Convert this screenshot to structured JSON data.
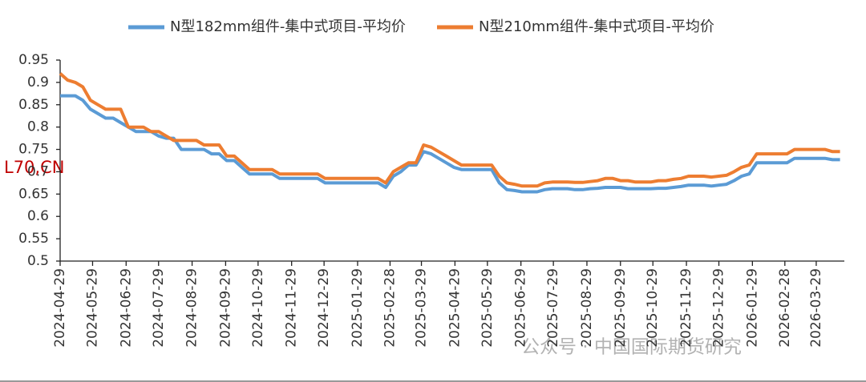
{
  "chart_data": {
    "type": "line",
    "x": [
      "2024-04-29",
      "2024-05-06",
      "2024-05-13",
      "2024-05-20",
      "2024-05-27",
      "2024-06-03",
      "2024-06-10",
      "2024-06-17",
      "2024-06-24",
      "2024-07-01",
      "2024-07-08",
      "2024-07-15",
      "2024-07-22",
      "2024-07-29",
      "2024-08-05",
      "2024-08-12",
      "2024-08-19",
      "2024-08-26",
      "2024-09-02",
      "2024-09-09",
      "2024-09-16",
      "2024-09-23",
      "2024-09-30",
      "2024-10-07",
      "2024-10-14",
      "2024-10-21",
      "2024-10-28",
      "2024-11-04",
      "2024-11-11",
      "2024-11-18",
      "2024-11-25",
      "2024-12-02",
      "2024-12-09",
      "2024-12-16",
      "2024-12-23",
      "2024-12-30",
      "2025-01-06",
      "2025-01-13",
      "2025-01-20",
      "2025-01-27",
      "2025-02-03",
      "2025-02-10",
      "2025-02-17",
      "2025-02-24",
      "2025-03-03",
      "2025-03-10",
      "2025-03-17",
      "2025-03-24",
      "2025-03-31",
      "2025-04-07",
      "2025-04-14",
      "2025-04-21",
      "2025-04-28",
      "2025-05-05",
      "2025-05-12",
      "2025-05-19",
      "2025-05-26",
      "2025-06-02",
      "2025-06-09",
      "2025-06-16",
      "2025-06-23",
      "2025-06-30",
      "2025-07-07",
      "2025-07-14",
      "2025-07-21",
      "2025-07-28",
      "2025-08-04",
      "2025-08-11",
      "2025-08-18",
      "2025-08-25",
      "2025-09-01",
      "2025-09-08",
      "2025-09-15",
      "2025-09-22",
      "2025-09-29",
      "2025-10-06",
      "2025-10-13",
      "2025-10-20",
      "2025-10-27",
      "2025-11-03",
      "2025-11-10",
      "2025-11-17",
      "2025-11-24",
      "2025-12-01",
      "2025-12-08",
      "2025-12-15",
      "2025-12-22",
      "2025-12-29",
      "2026-01-05",
      "2026-01-12",
      "2026-01-19",
      "2026-01-26",
      "2026-02-02",
      "2026-02-09",
      "2026-02-16",
      "2026-02-23",
      "2026-03-02",
      "2026-03-09",
      "2026-03-16",
      "2026-03-23",
      "2026-03-30",
      "2026-04-06",
      "2026-04-13",
      "2026-04-20"
    ],
    "series": [
      {
        "name": "N型182mm组件-集中式项目-平均价",
        "color": "#5b9bd5",
        "values": [
          0.87,
          0.87,
          0.87,
          0.86,
          0.84,
          0.83,
          0.82,
          0.82,
          0.81,
          0.8,
          0.79,
          0.79,
          0.79,
          0.78,
          0.775,
          0.775,
          0.75,
          0.75,
          0.75,
          0.75,
          0.74,
          0.74,
          0.725,
          0.725,
          0.71,
          0.695,
          0.695,
          0.695,
          0.695,
          0.685,
          0.685,
          0.685,
          0.685,
          0.685,
          0.685,
          0.675,
          0.675,
          0.675,
          0.675,
          0.675,
          0.675,
          0.675,
          0.675,
          0.665,
          0.69,
          0.7,
          0.715,
          0.715,
          0.745,
          0.74,
          0.73,
          0.72,
          0.71,
          0.705,
          0.705,
          0.705,
          0.705,
          0.705,
          0.675,
          0.66,
          0.658,
          0.655,
          0.655,
          0.655,
          0.66,
          0.662,
          0.662,
          0.662,
          0.66,
          0.66,
          0.662,
          0.663,
          0.665,
          0.665,
          0.665,
          0.662,
          0.662,
          0.662,
          0.662,
          0.663,
          0.663,
          0.665,
          0.667,
          0.67,
          0.67,
          0.67,
          0.668,
          0.67,
          0.672,
          0.68,
          0.69,
          0.695,
          0.72,
          0.72,
          0.72,
          0.72,
          0.72,
          0.73,
          0.73,
          0.73,
          0.73,
          0.73,
          0.727,
          0.727
        ]
      },
      {
        "name": "N型210mm组件-集中式项目-平均价",
        "color": "#ed7d31",
        "values": [
          0.92,
          0.905,
          0.9,
          0.89,
          0.86,
          0.85,
          0.84,
          0.84,
          0.84,
          0.8,
          0.8,
          0.8,
          0.79,
          0.79,
          0.78,
          0.77,
          0.77,
          0.77,
          0.77,
          0.76,
          0.76,
          0.76,
          0.735,
          0.735,
          0.72,
          0.705,
          0.705,
          0.705,
          0.705,
          0.695,
          0.695,
          0.695,
          0.695,
          0.695,
          0.695,
          0.685,
          0.685,
          0.685,
          0.685,
          0.685,
          0.685,
          0.685,
          0.685,
          0.675,
          0.7,
          0.71,
          0.72,
          0.72,
          0.76,
          0.755,
          0.745,
          0.735,
          0.725,
          0.715,
          0.715,
          0.715,
          0.715,
          0.715,
          0.69,
          0.675,
          0.672,
          0.668,
          0.668,
          0.668,
          0.675,
          0.677,
          0.677,
          0.677,
          0.676,
          0.676,
          0.678,
          0.68,
          0.685,
          0.685,
          0.68,
          0.68,
          0.677,
          0.677,
          0.677,
          0.68,
          0.68,
          0.683,
          0.685,
          0.69,
          0.69,
          0.69,
          0.688,
          0.69,
          0.692,
          0.7,
          0.71,
          0.715,
          0.74,
          0.74,
          0.74,
          0.74,
          0.74,
          0.75,
          0.75,
          0.75,
          0.75,
          0.75,
          0.745,
          0.745
        ]
      }
    ],
    "xlim": [
      "2024-04-29",
      "2026-04-24"
    ],
    "xticks": [
      "2024-04-29",
      "2024-05-29",
      "2024-06-29",
      "2024-07-29",
      "2024-08-29",
      "2024-09-29",
      "2024-10-29",
      "2024-11-29",
      "2024-12-29",
      "2025-01-29",
      "2025-02-28",
      "2025-03-29",
      "2025-04-29",
      "2025-05-29",
      "2025-06-29",
      "2025-07-29",
      "2025-08-29",
      "2025-09-29",
      "2025-10-29",
      "2025-11-29",
      "2025-12-29",
      "2026-01-29",
      "2026-02-28",
      "2026-03-29"
    ],
    "ylim": [
      0.5,
      0.95
    ],
    "yticks": [
      0.5,
      0.55,
      0.6,
      0.65,
      0.7,
      0.75,
      0.8,
      0.85,
      0.9,
      0.95
    ],
    "grid": false,
    "annotation": "L70,CN",
    "watermark": "公众号 · 中国国际期货研究"
  }
}
